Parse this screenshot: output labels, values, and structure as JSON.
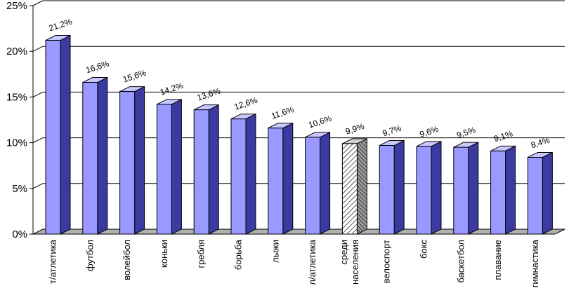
{
  "chart_data": {
    "type": "bar",
    "title": "",
    "xlabel": "",
    "ylabel": "",
    "categories": [
      "т/атлетика",
      "футбол",
      "волейбол",
      "коньки",
      "гребля",
      "борьба",
      "лыжи",
      "л/атлетика",
      "среди\nнаселения",
      "велоспорт",
      "бокс",
      "баскетбол",
      "плавание",
      "гимнастика"
    ],
    "values": [
      21.2,
      16.6,
      15.6,
      14.2,
      13.6,
      12.6,
      11.6,
      10.6,
      9.9,
      9.7,
      9.6,
      9.5,
      9.1,
      8.4
    ],
    "value_labels": [
      "21,2%",
      "16,6%",
      "15,6%",
      "14,2%",
      "13,6%",
      "12,6%",
      "11,6%",
      "10,6%",
      "9,9%",
      "9,7%",
      "9,6%",
      "9,5%",
      "9,1%",
      "8,4%"
    ],
    "highlighted_index": 8,
    "ylim": [
      0,
      25
    ],
    "yticks": [
      0,
      5,
      10,
      15,
      20,
      25
    ],
    "ytick_labels": [
      "0%",
      "5%",
      "10%",
      "15%",
      "20%",
      "25%"
    ],
    "grid": true,
    "legend": "none",
    "style": "3d-columns",
    "colors": {
      "bar_front": "#9999ff",
      "bar_side": "#3a3aa0",
      "bar_top": "#c8c8ff",
      "bar_outline": "#000000",
      "highlight_front": "#ffffff",
      "highlight_side": "#808080",
      "gridline": "#000000",
      "floor": "#b0b0b0"
    }
  }
}
